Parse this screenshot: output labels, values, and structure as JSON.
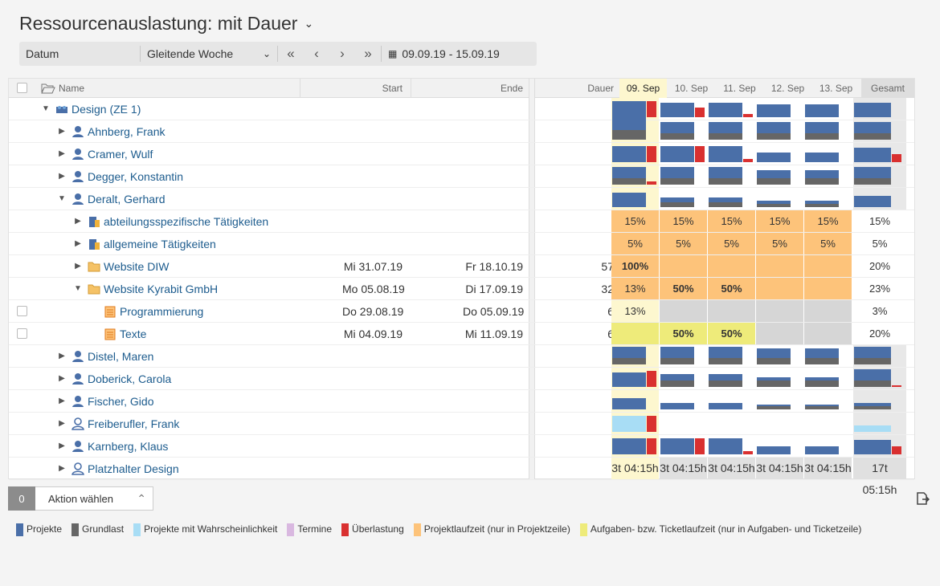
{
  "title": "Ressourcenauslastung: mit Dauer",
  "toolbar": {
    "datum_label": "Datum",
    "range_mode": "Gleitende Woche",
    "date_range": "09.09.19 - 15.09.19"
  },
  "columns": {
    "name": "Name",
    "start": "Start",
    "ende": "Ende",
    "dauer": "Dauer",
    "days": [
      "09. Sep",
      "10. Sep",
      "11. Sep",
      "12. Sep",
      "13. Sep"
    ],
    "gesamt": "Gesamt"
  },
  "rows": [
    {
      "name": "Design (ZE 1)"
    },
    {
      "name": "Ahnberg, Frank"
    },
    {
      "name": "Cramer, Wulf"
    },
    {
      "name": "Degger, Konstantin"
    },
    {
      "name": "Deralt, Gerhard"
    },
    {
      "name": "abteilungsspezifische Tätigkeiten",
      "days": [
        "15%",
        "15%",
        "15%",
        "15%",
        "15%"
      ],
      "gesamt": "15%"
    },
    {
      "name": "allgemeine Tätigkeiten",
      "days": [
        "5%",
        "5%",
        "5%",
        "5%",
        "5%"
      ],
      "gesamt": "5%"
    },
    {
      "name": "Website DIW",
      "start": "Mi 31.07.19",
      "ende": "Fr 18.10.19",
      "dauer": "57",
      "days": [
        "100%",
        "",
        "",
        "",
        ""
      ],
      "gesamt": "20%"
    },
    {
      "name": "Website Kyrabit GmbH",
      "start": "Mo 05.08.19",
      "ende": "Di 17.09.19",
      "dauer": "32",
      "days": [
        "13%",
        "50%",
        "50%",
        "",
        ""
      ],
      "gesamt": "23%"
    },
    {
      "name": "Programmierung",
      "start": "Do 29.08.19",
      "ende": "Do 05.09.19",
      "dauer": "6",
      "days": [
        "13%",
        "",
        "",
        "",
        ""
      ],
      "gesamt": "3%"
    },
    {
      "name": "Texte",
      "start": "Mi 04.09.19",
      "ende": "Mi 11.09.19",
      "dauer": "6",
      "days": [
        "",
        "50%",
        "50%",
        "",
        ""
      ],
      "gesamt": "20%"
    },
    {
      "name": "Distel, Maren"
    },
    {
      "name": "Doberick, Carola"
    },
    {
      "name": "Fischer, Gido"
    },
    {
      "name": "Freiberufler, Frank"
    },
    {
      "name": "Karnberg, Klaus"
    },
    {
      "name": "Platzhalter Design",
      "days": [
        "3t 04:15h",
        "3t 04:15h",
        "3t 04:15h",
        "3t 04:15h",
        "3t 04:15h"
      ],
      "gesamt": "17t 05:15h"
    }
  ],
  "footer": {
    "count": "0",
    "action": "Aktion wählen"
  },
  "legend": [
    {
      "label": "Projekte",
      "color": "#4a6fa8"
    },
    {
      "label": "Grundlast",
      "color": "#666666"
    },
    {
      "label": "Projekte mit Wahrscheinlichkeit",
      "color": "#a8ddf5"
    },
    {
      "label": "Termine",
      "color": "#d9b8e0"
    },
    {
      "label": "Überlastung",
      "color": "#d93030"
    },
    {
      "label": "Projektlaufzeit (nur in Projektzeile)",
      "color": "#fdc37a"
    },
    {
      "label": "Aufgaben- bzw. Ticketlaufzeit (nur in Aufgaben- und Ticketzeile)",
      "color": "#eeeb7a"
    }
  ]
}
